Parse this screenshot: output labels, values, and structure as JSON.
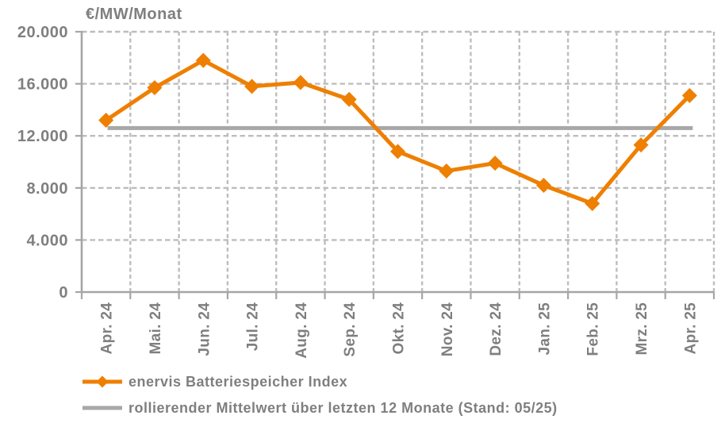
{
  "chart_data": {
    "type": "line",
    "title": "€/MW/Monat",
    "categories": [
      "Apr. 24",
      "Mai. 24",
      "Jun. 24",
      "Jul. 24",
      "Aug. 24",
      "Sep. 24",
      "Okt. 24",
      "Nov. 24",
      "Dez. 24",
      "Jan. 25",
      "Feb. 25",
      "Mrz. 25",
      "Apr. 25"
    ],
    "series": [
      {
        "name": "enervis Batteriespeicher Index",
        "type": "line",
        "marker": "diamond",
        "color": "#EE7F00",
        "values": [
          13200,
          15700,
          17800,
          15800,
          16100,
          14800,
          10800,
          9300,
          9900,
          8200,
          6800,
          11300,
          15100
        ]
      },
      {
        "name": "rollierender Mittelwert über letzten 12 Monate (Stand: 05/25)",
        "type": "constant-line",
        "marker": "none",
        "color": "#A8A8A8",
        "value": 12600
      }
    ],
    "ylim": [
      0,
      20000
    ],
    "ytick_step": 4000,
    "ytick_labels": [
      "0",
      "4.000",
      "8.000",
      "12.000",
      "16.000",
      "20.000"
    ],
    "grid": "dashed",
    "legend_position": "bottom-left"
  },
  "colors": {
    "axis": "#A6A6A6",
    "gridline": "#BDBDBD",
    "text": "#7F7F7F",
    "series": "#EE7F00",
    "mean_line": "#A8A8A8",
    "background": "#FFFFFF"
  }
}
